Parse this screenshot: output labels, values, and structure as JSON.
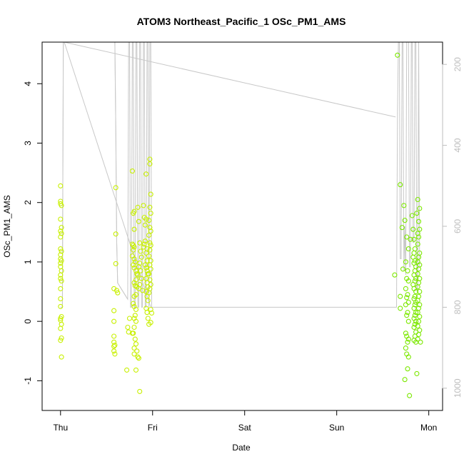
{
  "chart_data": {
    "type": "scatter",
    "title": "ATOM3 Northeast_Pacific_1 OSc_PM1_AMS",
    "xlabel": "Date",
    "ylabel": "OSc_PM1_AMS",
    "x_ticks": [
      "Thu",
      "Fri",
      "Sat",
      "Sun",
      "Mon"
    ],
    "y_ticks": [
      -1,
      0,
      1,
      2,
      3,
      4
    ],
    "y2_ticks": [
      200,
      400,
      600,
      800,
      1000
    ],
    "xlim_days": [
      -0.2,
      4.15
    ],
    "ylim": [
      -1.5,
      4.7
    ],
    "y2lim": [
      1055,
      145
    ],
    "grid": false,
    "colors": {
      "thu_fri": "#c8f000",
      "mon": "#7ce800",
      "track": "#c8c8c8",
      "axis": "#000000",
      "secondary_axis": "#bdbdbd"
    },
    "series": [
      {
        "points": [
          [
            0.0,
            2.28
          ],
          [
            0.0,
            2.02
          ],
          [
            0.0,
            1.98
          ],
          [
            0.01,
            1.95
          ],
          [
            0.0,
            1.72
          ],
          [
            0.01,
            1.58
          ],
          [
            0.0,
            1.52
          ],
          [
            0.01,
            1.48
          ],
          [
            0.0,
            1.42
          ],
          [
            0.0,
            1.22
          ],
          [
            0.01,
            1.18
          ],
          [
            0.0,
            1.12
          ],
          [
            0.0,
            1.05
          ],
          [
            0.01,
            1.02
          ],
          [
            0.0,
            0.98
          ],
          [
            0.0,
            0.92
          ],
          [
            0.01,
            0.85
          ],
          [
            0.0,
            0.78
          ],
          [
            0.0,
            0.72
          ],
          [
            0.01,
            0.68
          ],
          [
            0.0,
            0.55
          ],
          [
            0.0,
            0.38
          ],
          [
            0.0,
            0.25
          ],
          [
            0.01,
            0.08
          ],
          [
            0.0,
            0.05
          ],
          [
            0.0,
            0.02
          ],
          [
            0.01,
            -0.05
          ],
          [
            0.0,
            -0.12
          ],
          [
            0.01,
            -0.28
          ],
          [
            0.0,
            -0.32
          ],
          [
            0.01,
            -0.6
          ],
          [
            0.6,
            2.25
          ],
          [
            0.6,
            1.47
          ],
          [
            0.6,
            0.97
          ],
          [
            0.61,
            0.52
          ],
          [
            0.58,
            0.55
          ],
          [
            0.62,
            0.48
          ],
          [
            0.58,
            0.18
          ],
          [
            0.58,
            0.0
          ],
          [
            0.58,
            -0.25
          ],
          [
            0.58,
            -0.35
          ],
          [
            0.59,
            -0.4
          ],
          [
            0.58,
            -0.42
          ],
          [
            0.58,
            -0.5
          ],
          [
            0.59,
            -0.55
          ],
          [
            0.75,
            0.05
          ],
          [
            0.74,
            -0.18
          ],
          [
            0.73,
            -0.1
          ],
          [
            0.78,
            -0.2
          ],
          [
            0.72,
            -0.82
          ],
          [
            0.8,
            -0.55
          ],
          [
            0.82,
            -0.82
          ],
          [
            0.85,
            -0.62
          ],
          [
            0.86,
            -1.18
          ],
          [
            0.78,
            2.53
          ],
          [
            0.79,
            1.82
          ],
          [
            0.8,
            1.85
          ],
          [
            0.8,
            1.55
          ],
          [
            0.78,
            1.3
          ],
          [
            0.79,
            1.28
          ],
          [
            0.8,
            1.25
          ],
          [
            0.79,
            1.2
          ],
          [
            0.78,
            1.1
          ],
          [
            0.8,
            1.05
          ],
          [
            0.81,
            1.0
          ],
          [
            0.79,
            0.95
          ],
          [
            0.8,
            0.9
          ],
          [
            0.82,
            0.85
          ],
          [
            0.83,
            0.8
          ],
          [
            0.84,
            0.78
          ],
          [
            0.82,
            0.7
          ],
          [
            0.8,
            0.65
          ],
          [
            0.81,
            0.6
          ],
          [
            0.83,
            0.58
          ],
          [
            0.85,
            0.55
          ],
          [
            0.82,
            0.45
          ],
          [
            0.8,
            0.42
          ],
          [
            0.79,
            0.3
          ],
          [
            0.8,
            0.25
          ],
          [
            0.82,
            0.2
          ],
          [
            0.81,
            0.1
          ],
          [
            0.8,
            0.05
          ],
          [
            0.82,
            0.0
          ],
          [
            0.8,
            -0.1
          ],
          [
            0.79,
            -0.2
          ],
          [
            0.81,
            -0.3
          ],
          [
            0.82,
            -0.38
          ],
          [
            0.8,
            -0.45
          ],
          [
            0.83,
            -0.5
          ],
          [
            0.84,
            -0.6
          ],
          [
            0.84,
            1.92
          ],
          [
            0.85,
            1.68
          ],
          [
            0.86,
            1.32
          ],
          [
            0.87,
            1.18
          ],
          [
            0.88,
            1.08
          ],
          [
            0.86,
            0.98
          ],
          [
            0.85,
            0.92
          ],
          [
            0.87,
            0.85
          ],
          [
            0.88,
            0.72
          ],
          [
            0.86,
            0.62
          ],
          [
            0.89,
            0.52
          ],
          [
            0.9,
            1.25
          ],
          [
            0.91,
            1.3
          ],
          [
            0.92,
            1.35
          ],
          [
            0.9,
            1.95
          ],
          [
            0.91,
            1.75
          ],
          [
            0.93,
            1.72
          ],
          [
            0.92,
            1.62
          ],
          [
            0.93,
            2.48
          ],
          [
            0.94,
            1.22
          ],
          [
            0.93,
            1.15
          ],
          [
            0.94,
            1.02
          ],
          [
            0.92,
            0.95
          ],
          [
            0.93,
            0.9
          ],
          [
            0.94,
            0.85
          ],
          [
            0.95,
            0.8
          ],
          [
            0.93,
            0.72
          ],
          [
            0.94,
            0.65
          ],
          [
            0.95,
            0.58
          ],
          [
            0.93,
            0.5
          ],
          [
            0.94,
            0.42
          ],
          [
            0.95,
            0.35
          ],
          [
            0.93,
            0.22
          ],
          [
            0.94,
            0.15
          ],
          [
            0.95,
            0.05
          ],
          [
            0.96,
            -0.05
          ],
          [
            0.97,
            2.73
          ],
          [
            0.97,
            2.65
          ],
          [
            0.98,
            2.14
          ],
          [
            0.97,
            1.92
          ],
          [
            0.98,
            1.82
          ],
          [
            0.96,
            1.7
          ],
          [
            0.97,
            1.58
          ],
          [
            0.98,
            1.52
          ],
          [
            0.96,
            1.45
          ],
          [
            0.97,
            1.32
          ],
          [
            0.98,
            1.28
          ],
          [
            0.97,
            1.2
          ],
          [
            0.96,
            1.1
          ],
          [
            0.98,
            1.02
          ],
          [
            0.97,
            0.95
          ],
          [
            0.98,
            0.88
          ],
          [
            0.96,
            0.8
          ],
          [
            0.97,
            0.7
          ],
          [
            0.98,
            0.62
          ],
          [
            0.97,
            0.55
          ],
          [
            0.96,
            0.48
          ],
          [
            0.98,
            0.2
          ],
          [
            0.99,
            0.14
          ],
          [
            0.98,
            -0.02
          ]
        ]
      },
      {
        "points": [
          [
            3.66,
            4.48
          ],
          [
            3.69,
            2.3
          ],
          [
            3.71,
            1.58
          ],
          [
            3.73,
            1.95
          ],
          [
            3.74,
            1.7
          ],
          [
            3.72,
            0.88
          ],
          [
            3.69,
            0.42
          ],
          [
            3.69,
            0.22
          ],
          [
            3.63,
            0.78
          ],
          [
            3.76,
            1.42
          ],
          [
            3.78,
            1.22
          ],
          [
            3.75,
            1.0
          ],
          [
            3.77,
            0.85
          ],
          [
            3.76,
            0.72
          ],
          [
            3.78,
            0.68
          ],
          [
            3.75,
            0.55
          ],
          [
            3.77,
            0.45
          ],
          [
            3.76,
            0.4
          ],
          [
            3.78,
            0.32
          ],
          [
            3.75,
            0.28
          ],
          [
            3.77,
            0.15
          ],
          [
            3.76,
            0.1
          ],
          [
            3.78,
            0.0
          ],
          [
            3.75,
            -0.2
          ],
          [
            3.76,
            -0.25
          ],
          [
            3.78,
            -0.3
          ],
          [
            3.77,
            -0.35
          ],
          [
            3.75,
            -0.45
          ],
          [
            3.76,
            -0.55
          ],
          [
            3.78,
            -0.6
          ],
          [
            3.77,
            -0.8
          ],
          [
            3.74,
            -0.98
          ],
          [
            3.79,
            -1.25
          ],
          [
            3.8,
            1.38
          ],
          [
            3.82,
            1.78
          ],
          [
            3.83,
            1.55
          ],
          [
            3.84,
            1.38
          ],
          [
            3.85,
            1.22
          ],
          [
            3.84,
            1.15
          ],
          [
            3.83,
            1.08
          ],
          [
            3.85,
            1.02
          ],
          [
            3.84,
            0.98
          ],
          [
            3.86,
            0.92
          ],
          [
            3.85,
            0.85
          ],
          [
            3.84,
            0.78
          ],
          [
            3.86,
            0.72
          ],
          [
            3.85,
            0.68
          ],
          [
            3.83,
            0.62
          ],
          [
            3.84,
            0.55
          ],
          [
            3.86,
            0.5
          ],
          [
            3.85,
            0.42
          ],
          [
            3.84,
            0.38
          ],
          [
            3.86,
            0.32
          ],
          [
            3.85,
            0.28
          ],
          [
            3.84,
            0.22
          ],
          [
            3.86,
            0.15
          ],
          [
            3.85,
            0.1
          ],
          [
            3.84,
            0.05
          ],
          [
            3.86,
            0.0
          ],
          [
            3.85,
            -0.05
          ],
          [
            3.84,
            -0.1
          ],
          [
            3.86,
            -0.18
          ],
          [
            3.85,
            -0.25
          ],
          [
            3.84,
            -0.32
          ],
          [
            3.86,
            -0.35
          ],
          [
            3.87,
            -0.88
          ],
          [
            3.88,
            2.05
          ],
          [
            3.9,
            1.9
          ],
          [
            3.87,
            1.82
          ],
          [
            3.89,
            1.68
          ],
          [
            3.9,
            1.55
          ],
          [
            3.88,
            1.48
          ],
          [
            3.89,
            1.42
          ],
          [
            3.88,
            1.3
          ],
          [
            3.9,
            1.15
          ],
          [
            3.89,
            1.08
          ],
          [
            3.88,
            1.0
          ],
          [
            3.9,
            0.95
          ],
          [
            3.89,
            0.88
          ],
          [
            3.88,
            0.8
          ],
          [
            3.9,
            0.72
          ],
          [
            3.89,
            0.65
          ],
          [
            3.88,
            0.58
          ],
          [
            3.9,
            0.5
          ],
          [
            3.89,
            0.42
          ],
          [
            3.88,
            0.35
          ],
          [
            3.9,
            0.28
          ],
          [
            3.89,
            0.22
          ],
          [
            3.88,
            0.15
          ],
          [
            3.9,
            0.08
          ],
          [
            3.89,
            0.0
          ],
          [
            3.88,
            -0.08
          ],
          [
            3.9,
            -0.15
          ],
          [
            3.89,
            -0.22
          ],
          [
            3.88,
            -0.3
          ],
          [
            3.91,
            -0.35
          ]
        ]
      }
    ],
    "track_altitude": {
      "x": [
        0.0,
        0.02,
        0.03,
        0.04,
        0.59,
        0.6,
        0.61,
        0.62,
        0.73,
        0.74,
        0.75,
        0.76,
        0.77,
        0.78,
        0.79,
        0.8,
        0.81,
        0.82,
        0.83,
        0.84,
        0.85,
        0.86,
        0.87,
        0.88,
        0.89,
        0.9,
        0.91,
        0.92,
        0.93,
        0.94,
        0.95,
        0.96,
        0.97,
        0.98,
        0.99,
        1.0,
        3.64,
        3.65,
        3.66,
        3.67,
        3.68,
        3.69,
        3.7,
        3.71,
        3.72,
        3.73,
        3.74,
        3.75,
        3.76,
        3.77,
        3.78,
        3.79,
        3.8,
        3.81,
        3.82,
        3.83,
        3.84,
        3.85,
        3.86,
        3.87,
        3.88,
        3.89,
        3.9,
        3.91
      ],
      "y": [
        800,
        800,
        145,
        145,
        145,
        360,
        640,
        740,
        780,
        145,
        145,
        800,
        800,
        145,
        145,
        800,
        800,
        145,
        145,
        800,
        800,
        145,
        145,
        800,
        800,
        145,
        145,
        800,
        800,
        145,
        145,
        800,
        145,
        145,
        800,
        800,
        800,
        800,
        320,
        145,
        145,
        680,
        680,
        145,
        145,
        710,
        600,
        720,
        145,
        145,
        145,
        700,
        700,
        145,
        145,
        640,
        640,
        145,
        145,
        760,
        760,
        145,
        700,
        700
      ],
      "segments": [
        {
          "x": [
            0.0,
            0.0,
            0.02,
            0.03,
            0.04,
            0.98,
            0.99
          ],
          "y": [
            800,
            800,
            800,
            145,
            145,
            800,
            800
          ]
        },
        {
          "x": [
            0.04,
            3.64
          ],
          "y": [
            145,
            330
          ]
        },
        {
          "x": [
            0.59,
            0.6,
            0.61,
            0.62,
            0.73
          ],
          "y": [
            145,
            360,
            640,
            740,
            780
          ]
        }
      ]
    }
  }
}
